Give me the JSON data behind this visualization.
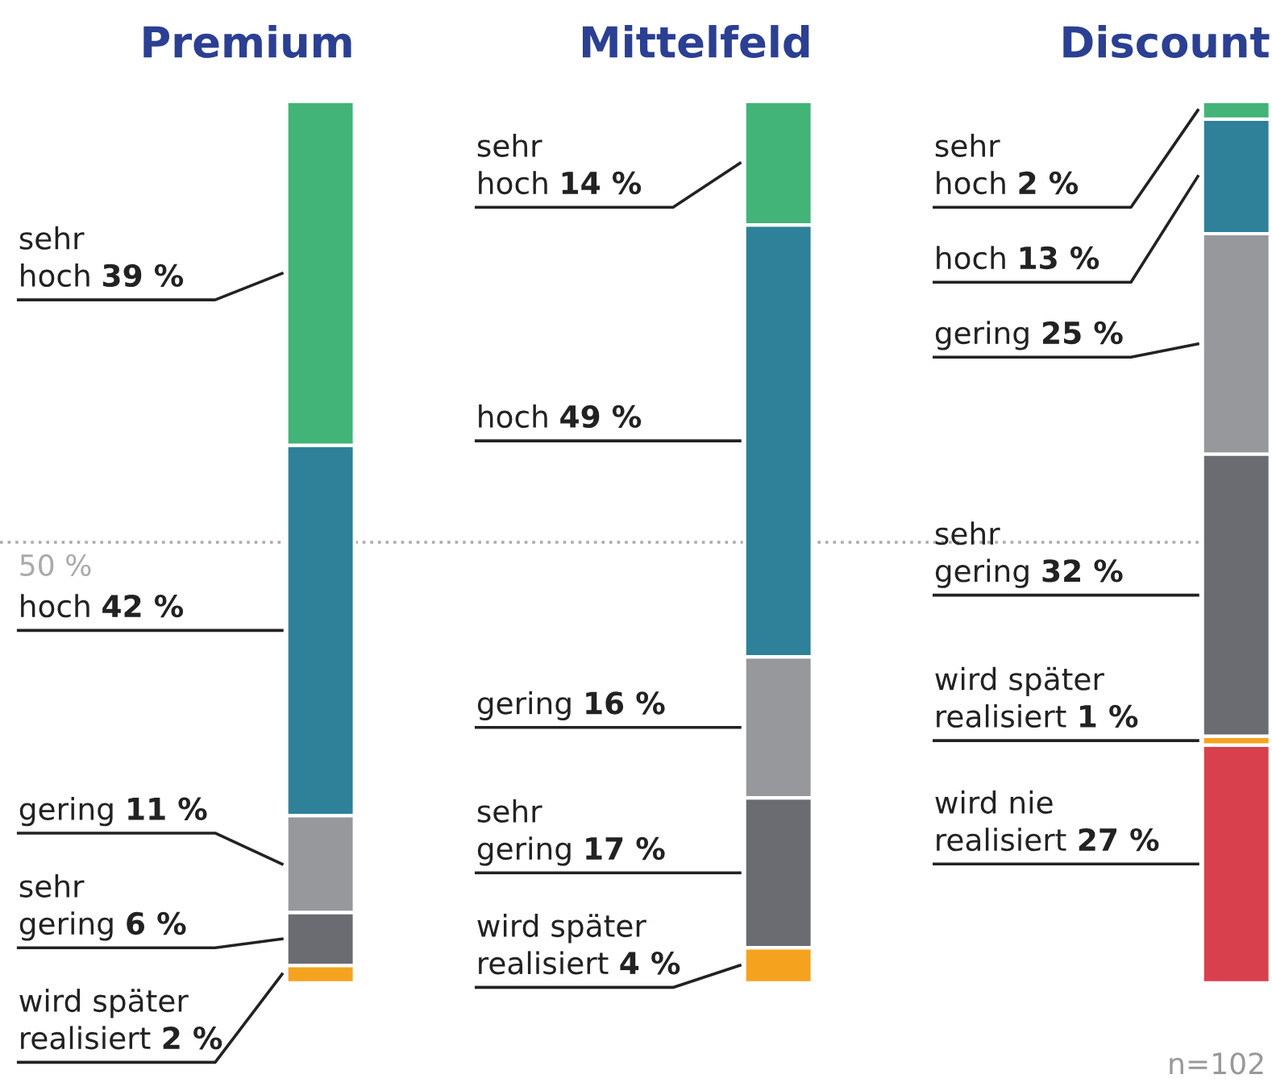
{
  "chart_data": {
    "type": "bar",
    "stacked": true,
    "categories": [
      "Premium",
      "Mittelfeld",
      "Discount"
    ],
    "series": [
      {
        "name": "wird nie realisiert",
        "color": "#d9404e",
        "values": [
          null,
          null,
          27
        ],
        "value_labels": [
          null,
          null,
          "27 %"
        ]
      },
      {
        "name": "wird später realisiert",
        "color": "#f5a31f",
        "values": [
          2,
          4,
          1
        ],
        "value_labels": [
          "2 %",
          "4 %",
          "1 %"
        ]
      },
      {
        "name": "sehr gering",
        "color": "#6b6c71",
        "values": [
          6,
          17,
          32
        ],
        "value_labels": [
          "6 %",
          "17 %",
          "32 %"
        ]
      },
      {
        "name": "gering",
        "color": "#97989c",
        "values": [
          11,
          16,
          25
        ],
        "value_labels": [
          "11 %",
          "16 %",
          "25 %"
        ]
      },
      {
        "name": "hoch",
        "color": "#2e8199",
        "values": [
          42,
          49,
          13
        ],
        "value_labels": [
          "42 %",
          "49 %",
          "13 %"
        ]
      },
      {
        "name": "sehr hoch",
        "color": "#42b478",
        "values": [
          39,
          14,
          2
        ],
        "value_labels": [
          "39 %",
          "14 %",
          "2 %"
        ]
      }
    ],
    "ref_lines": [
      {
        "axis": "y",
        "value": 50,
        "label": "50 %",
        "color": "#aaaaaa",
        "line_style": "dotted"
      }
    ],
    "annotations": [
      "n=102"
    ],
    "legend": false
  }
}
